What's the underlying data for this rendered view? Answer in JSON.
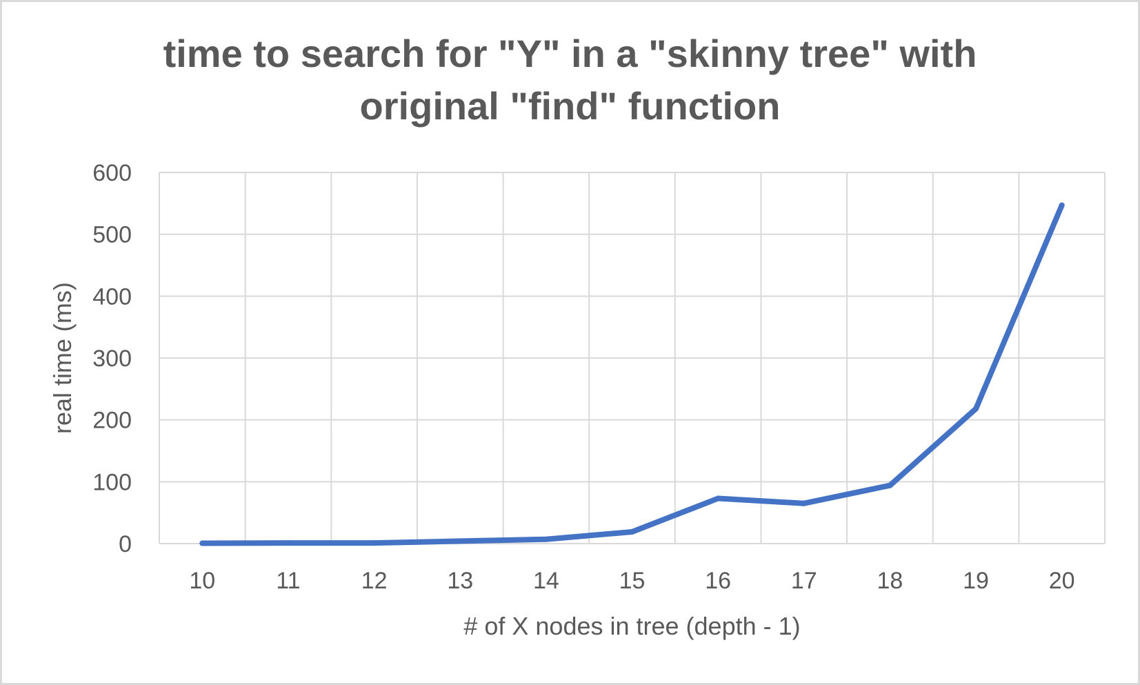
{
  "chart_data": {
    "type": "line",
    "title_lines": [
      "time to search for \"Y\" in a \"skinny tree\" with",
      "original \"find\" function"
    ],
    "xlabel": "# of X nodes in tree (depth - 1)",
    "ylabel": "real time (ms)",
    "categories": [
      "10",
      "11",
      "12",
      "13",
      "14",
      "15",
      "16",
      "17",
      "18",
      "19",
      "20"
    ],
    "series": [
      {
        "values": [
          0.5,
          1,
          1,
          4,
          7,
          19,
          73,
          65,
          94,
          218,
          547
        ],
        "color": "#4472c4"
      }
    ],
    "ylim": [
      0,
      600
    ],
    "yticks": [
      0,
      100,
      200,
      300,
      400,
      500,
      600
    ],
    "grid": true,
    "gridColor": "#d9d9d9",
    "legend": "none"
  }
}
